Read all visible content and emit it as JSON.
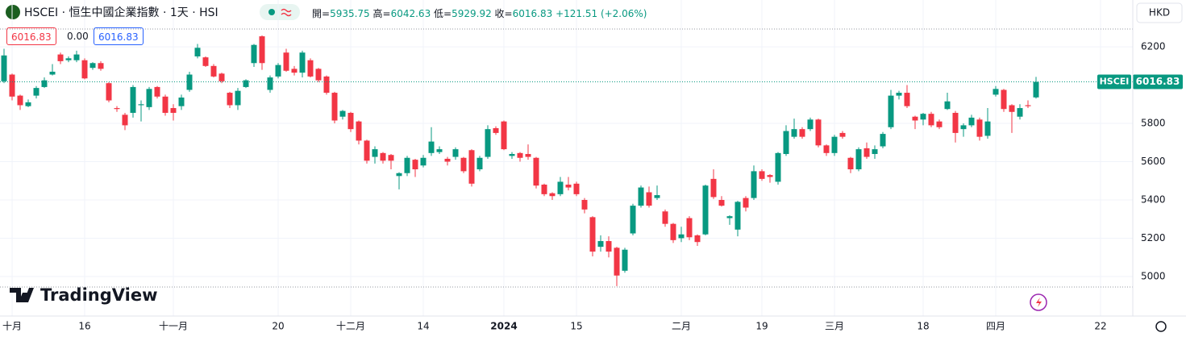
{
  "chart_data": {
    "type": "candlestick",
    "title": "HSCEI · 恒生中國企業指數 · 1天 · HSI",
    "currency": "HKD",
    "brand": "TradingView",
    "symbol": "HSCEI",
    "legend_labels": {
      "open": "開=",
      "high": "高=",
      "low": "低=",
      "close": "收="
    },
    "change": "+121.51",
    "change_pct": "(+2.06%)",
    "spread": "0.00",
    "up_color": "#089981",
    "down_color": "#f23645",
    "grid": true,
    "ylim": [
      4945,
      6293
    ],
    "yticks": [
      5000,
      5200,
      5400,
      5600,
      5800,
      6200
    ],
    "categories": [
      null,
      "十月",
      null,
      null,
      null,
      null,
      null,
      null,
      null,
      null,
      "16",
      null,
      null,
      null,
      null,
      null,
      null,
      null,
      null,
      null,
      null,
      "十一月",
      null,
      null,
      null,
      null,
      null,
      null,
      null,
      null,
      null,
      null,
      null,
      null,
      "20",
      null,
      null,
      null,
      null,
      null,
      null,
      null,
      null,
      "十二月",
      null,
      null,
      null,
      null,
      null,
      null,
      null,
      null,
      "14",
      null,
      null,
      null,
      null,
      null,
      null,
      null,
      null,
      null,
      "2024",
      null,
      null,
      null,
      null,
      null,
      null,
      null,
      null,
      "15",
      null,
      null,
      null,
      null,
      null,
      null,
      null,
      null,
      null,
      null,
      null,
      null,
      "二月",
      null,
      null,
      null,
      null,
      null,
      null,
      null,
      null,
      null,
      "19",
      null,
      null,
      null,
      null,
      null,
      null,
      null,
      null,
      "三月",
      null,
      null,
      null,
      null,
      null,
      null,
      null,
      null,
      null,
      null,
      "18",
      null,
      null,
      null,
      null,
      null,
      null,
      null,
      null,
      "四月",
      null,
      null,
      null,
      null,
      null,
      null,
      null,
      null,
      null,
      null,
      null,
      null,
      "22"
    ],
    "open": [
      6020,
      6055,
      5945,
      5890,
      5945,
      5990,
      6055,
      6160,
      6130,
      6130,
      6130,
      6090,
      6115,
      6010,
      5880,
      5845,
      5855,
      5895,
      5885,
      5990,
      5940,
      5880,
      5890,
      5975,
      6150,
      6145,
      6100,
      6060,
      5960,
      5895,
      5990,
      6115,
      6255,
      5975,
      6045,
      6170,
      6085,
      6065,
      6130,
      6085,
      6045,
      5960,
      5835,
      5855,
      5810,
      5710,
      5625,
      5645,
      5635,
      5525,
      5540,
      5610,
      5580,
      5645,
      5650,
      5615,
      5625,
      5620,
      5660,
      5560,
      5625,
      5775,
      5810,
      5630,
      5645,
      5640,
      5620,
      5480,
      5435,
      5430,
      5480,
      5485,
      5400,
      5310,
      5155,
      5185,
      5150,
      5030,
      5225,
      5370,
      5440,
      5410,
      5340,
      5275,
      5200,
      5305,
      5215,
      5220,
      5510,
      5400,
      5305,
      5245,
      5410,
      5410,
      5550,
      5530,
      5495,
      5640,
      5730,
      5770,
      5770,
      5820,
      5685,
      5645,
      5750,
      5620,
      5560,
      5670,
      5640,
      5680,
      5780,
      5945,
      5960,
      5835,
      5820,
      5850,
      5810,
      5875,
      5855,
      5770,
      5790,
      5820,
      5735,
      5950,
      5975,
      5895,
      5835,
      5895,
      5935.75,
      null,
      null,
      null,
      null,
      null,
      null,
      null,
      null
    ],
    "high": [
      6190,
      6060,
      5950,
      5925,
      5995,
      6040,
      6110,
      6170,
      6150,
      6180,
      6140,
      6120,
      6125,
      6015,
      5890,
      5855,
      6000,
      5920,
      5990,
      5995,
      5950,
      5900,
      5950,
      6070,
      6215,
      6150,
      6110,
      6065,
      5965,
      5985,
      6030,
      6215,
      6260,
      6050,
      6115,
      6190,
      6100,
      6180,
      6140,
      6090,
      6050,
      5965,
      5870,
      5860,
      5815,
      5715,
      5680,
      5650,
      5640,
      5545,
      5630,
      5615,
      5635,
      5780,
      5680,
      5625,
      5675,
      5625,
      5665,
      5630,
      5790,
      5785,
      5815,
      5650,
      5650,
      5690,
      5625,
      5485,
      5440,
      5520,
      5520,
      5495,
      5410,
      5315,
      5215,
      5210,
      5155,
      5150,
      5380,
      5475,
      5470,
      5475,
      5350,
      5280,
      5260,
      5315,
      5220,
      5480,
      5560,
      5420,
      5320,
      5395,
      5420,
      5580,
      5560,
      5535,
      5650,
      5790,
      5825,
      5780,
      5830,
      5825,
      5690,
      5740,
      5760,
      5625,
      5675,
      5700,
      5685,
      5755,
      5975,
      5970,
      6000,
      5840,
      5855,
      5860,
      5820,
      5960,
      5865,
      5800,
      5845,
      5830,
      5880,
      5995,
      5980,
      5900,
      5900,
      5920,
      6042.63,
      null,
      null,
      null,
      null,
      null,
      null,
      null,
      null
    ],
    "low": [
      6010,
      5920,
      5870,
      5885,
      5930,
      5985,
      6050,
      6110,
      6120,
      6120,
      6030,
      6080,
      6075,
      5910,
      5860,
      5765,
      5830,
      5810,
      5870,
      5930,
      5840,
      5815,
      5870,
      5965,
      6140,
      6095,
      6040,
      6010,
      5880,
      5870,
      5985,
      6095,
      6080,
      5960,
      6035,
      6070,
      6050,
      6040,
      6040,
      6015,
      5950,
      5800,
      5820,
      5755,
      5690,
      5590,
      5590,
      5590,
      5560,
      5455,
      5525,
      5520,
      5570,
      5630,
      5640,
      5580,
      5610,
      5540,
      5470,
      5550,
      5615,
      5740,
      5660,
      5615,
      5600,
      5610,
      5460,
      5420,
      5400,
      5420,
      5450,
      5420,
      5330,
      5105,
      5130,
      5100,
      4950,
      5020,
      5215,
      5360,
      5360,
      5400,
      5260,
      5175,
      5180,
      5190,
      5160,
      5215,
      5405,
      5365,
      5270,
      5210,
      5340,
      5400,
      5500,
      5490,
      5480,
      5630,
      5720,
      5720,
      5760,
      5675,
      5630,
      5630,
      5720,
      5540,
      5550,
      5615,
      5615,
      5670,
      5770,
      5925,
      5880,
      5770,
      5790,
      5780,
      5770,
      5870,
      5700,
      5730,
      5780,
      5710,
      5720,
      5940,
      5860,
      5750,
      5820,
      5880,
      5929.92,
      null,
      null,
      null,
      null,
      null,
      null,
      null,
      null
    ],
    "close": [
      6155,
      5940,
      5895,
      5910,
      5985,
      6025,
      6070,
      6125,
      6140,
      6160,
      6035,
      6115,
      6085,
      5920,
      5875,
      5790,
      5990,
      5900,
      5980,
      5940,
      5855,
      5855,
      5935,
      6055,
      6195,
      6100,
      6045,
      6020,
      5895,
      5970,
      6025,
      6210,
      6115,
      6040,
      6105,
      6075,
      6065,
      6170,
      6045,
      6025,
      5960,
      5815,
      5865,
      5770,
      5710,
      5605,
      5665,
      5605,
      5605,
      5540,
      5620,
      5560,
      5620,
      5705,
      5665,
      5600,
      5665,
      5550,
      5485,
      5620,
      5770,
      5750,
      5665,
      5640,
      5620,
      5625,
      5475,
      5430,
      5420,
      5495,
      5465,
      5430,
      5350,
      5130,
      5185,
      5130,
      5005,
      5140,
      5370,
      5465,
      5370,
      5425,
      5275,
      5190,
      5220,
      5205,
      5180,
      5475,
      5415,
      5370,
      5315,
      5390,
      5360,
      5550,
      5510,
      5520,
      5645,
      5760,
      5770,
      5730,
      5820,
      5685,
      5645,
      5730,
      5730,
      5560,
      5665,
      5625,
      5665,
      5745,
      5945,
      5960,
      5890,
      5815,
      5850,
      5790,
      5780,
      5915,
      5750,
      5790,
      5830,
      5730,
      5810,
      5980,
      5875,
      5860,
      5880,
      5890,
      6016.83,
      null,
      null,
      null,
      null,
      null,
      null,
      null,
      null
    ]
  }
}
